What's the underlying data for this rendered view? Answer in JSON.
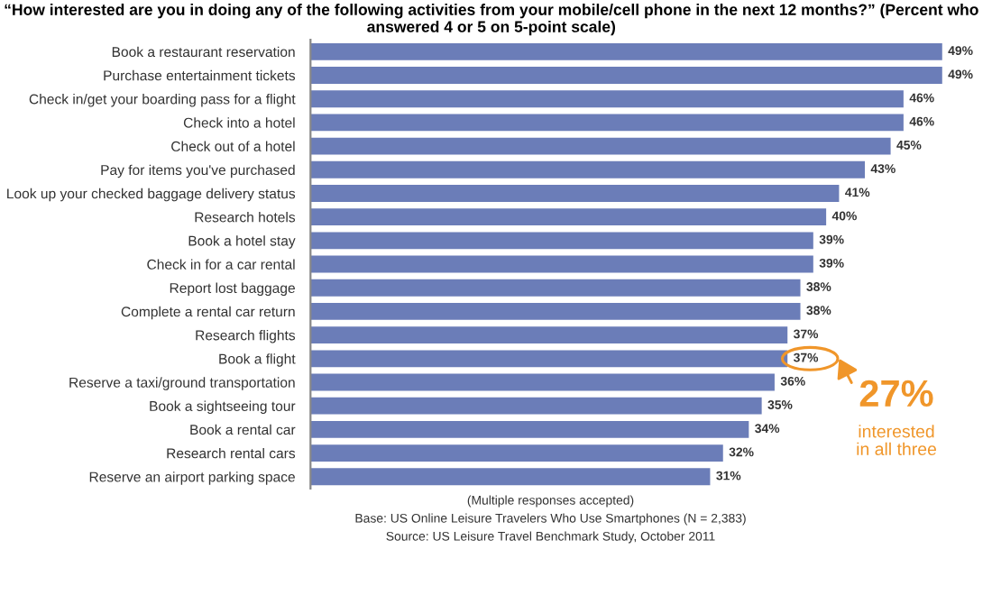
{
  "chart_data": {
    "type": "bar",
    "orientation": "horizontal",
    "title": "“How interested are you in doing any of the following activities from your mobile/cell phone in the next 12 months?” (Percent who answered 4 or 5 on 5-point scale)",
    "categories": [
      "Book a restaurant reservation",
      "Purchase entertainment tickets",
      "Check in/get your boarding pass for a flight",
      "Check into a hotel",
      "Check out of a hotel",
      "Pay for items you've purchased",
      "Look up your checked baggage delivery status",
      "Research hotels",
      "Book a hotel stay",
      "Check in for a car rental",
      "Report lost baggage",
      "Complete a rental car return",
      "Research flights",
      "Book a flight",
      "Reserve a taxi/ground transportation",
      "Book a sightseeing tour",
      "Book a rental car",
      "Research rental cars",
      "Reserve an airport parking space"
    ],
    "values": [
      49,
      49,
      46,
      46,
      45,
      43,
      41,
      40,
      39,
      39,
      38,
      38,
      37,
      37,
      36,
      35,
      34,
      32,
      31
    ],
    "value_labels": [
      "49%",
      "49%",
      "46%",
      "46%",
      "45%",
      "43%",
      "41%",
      "40%",
      "39%",
      "39%",
      "38%",
      "38%",
      "37%",
      "37%",
      "36%",
      "35%",
      "34%",
      "32%",
      "31%"
    ],
    "color": "#6b7db8",
    "tick_labels": "y",
    "grid": false,
    "annotations": [
      {
        "text": "27%",
        "x": 37,
        "y": "Book a flight"
      },
      "interested\nin all three",
      "(Multiple responses accepted)",
      "Base: US Online Leisure Travelers Who Use Smartphones (N = 2,383)",
      "Source: US Leisure Travel Benchmark Study, October 2011"
    ]
  }
}
